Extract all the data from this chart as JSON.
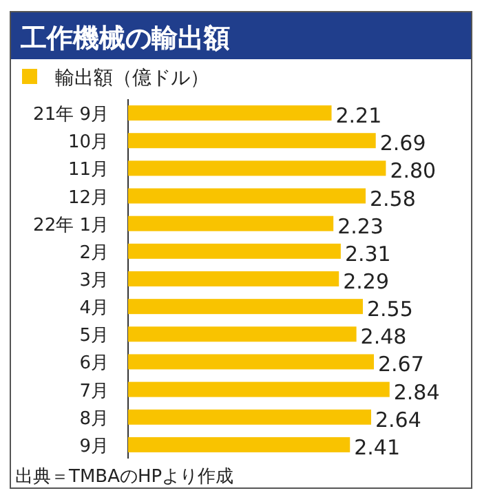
{
  "chart_data": {
    "type": "bar",
    "orientation": "horizontal",
    "title": "工作機械の輸出額",
    "categories": [
      "21年 9月",
      "10月",
      "11月",
      "12月",
      "22年 1月",
      "2月",
      "3月",
      "4月",
      "5月",
      "6月",
      "7月",
      "8月",
      "9月"
    ],
    "series": [
      {
        "name": "輸出額（億ドル）",
        "color": "#f9c300",
        "values": [
          2.21,
          2.69,
          2.8,
          2.58,
          2.23,
          2.31,
          2.29,
          2.55,
          2.48,
          2.67,
          2.84,
          2.64,
          2.41
        ],
        "value_labels": [
          "2.21",
          "2.69",
          "2.80",
          "2.58",
          "2.23",
          "2.31",
          "2.29",
          "2.55",
          "2.48",
          "2.67",
          "2.84",
          "2.64",
          "2.41"
        ]
      }
    ],
    "legend": "top left",
    "annotations": [
      "出典＝TMBAのHPより作成"
    ]
  }
}
